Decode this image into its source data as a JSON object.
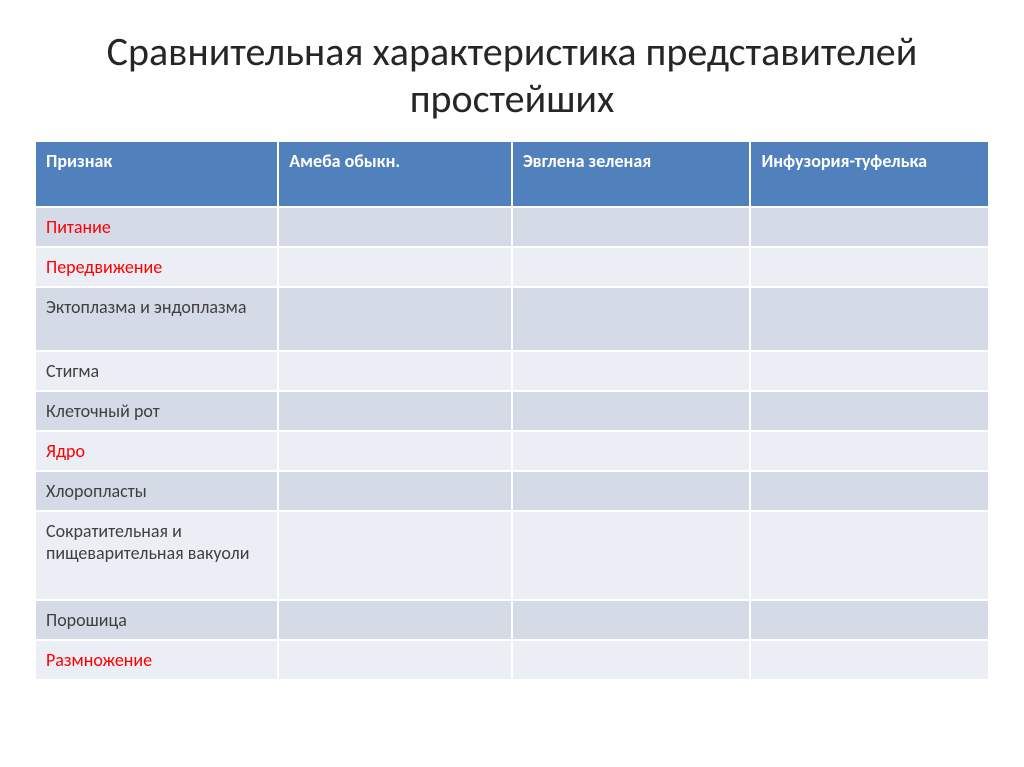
{
  "title": "Сравнительная характеристика представителей простейших",
  "table": {
    "type": "table",
    "header_bg": "#5181bd",
    "header_fg": "#ffffff",
    "row_odd_bg": "#d4dbe6",
    "row_even_bg": "#ebeef4",
    "border_color": "#ffffff",
    "text_color": "#404040",
    "highlight_color": "#ff0000",
    "title_fontsize": 40,
    "cell_fontsize": 18,
    "columns": [
      {
        "label": "Признак",
        "width_pct": 25.5
      },
      {
        "label": "Амеба обыкн.",
        "width_pct": 24.5
      },
      {
        "label": "Эвглена зеленая",
        "width_pct": 25
      },
      {
        "label": "Инфузория-туфелька",
        "width_pct": 25
      }
    ],
    "rows": [
      {
        "label": "Питание",
        "highlight": true,
        "cells": [
          "",
          "",
          ""
        ],
        "height": "h1"
      },
      {
        "label": "Передвижение",
        "highlight": true,
        "cells": [
          "",
          "",
          ""
        ],
        "height": "h1"
      },
      {
        "label": "Эктоплазма и эндоплазма",
        "highlight": false,
        "cells": [
          "",
          "",
          ""
        ],
        "height": "h2"
      },
      {
        "label": "Стигма",
        "highlight": false,
        "cells": [
          "",
          "",
          ""
        ],
        "height": "h1"
      },
      {
        "label": "Клеточный рот",
        "highlight": false,
        "cells": [
          "",
          "",
          ""
        ],
        "height": "h1"
      },
      {
        "label": "Ядро",
        "highlight": true,
        "cells": [
          "",
          "",
          ""
        ],
        "height": "h1"
      },
      {
        "label": "Хлоропласты",
        "highlight": false,
        "cells": [
          "",
          "",
          ""
        ],
        "height": "h1"
      },
      {
        "label": "Сократительная  и пищеварительная вакуоли",
        "highlight": false,
        "cells": [
          "",
          "",
          ""
        ],
        "height": "h3"
      },
      {
        "label": "Порошица",
        "highlight": false,
        "cells": [
          "",
          "",
          ""
        ],
        "height": "h1"
      },
      {
        "label": "Размножение",
        "highlight": true,
        "cells": [
          "",
          "",
          ""
        ],
        "height": "h1"
      }
    ]
  }
}
